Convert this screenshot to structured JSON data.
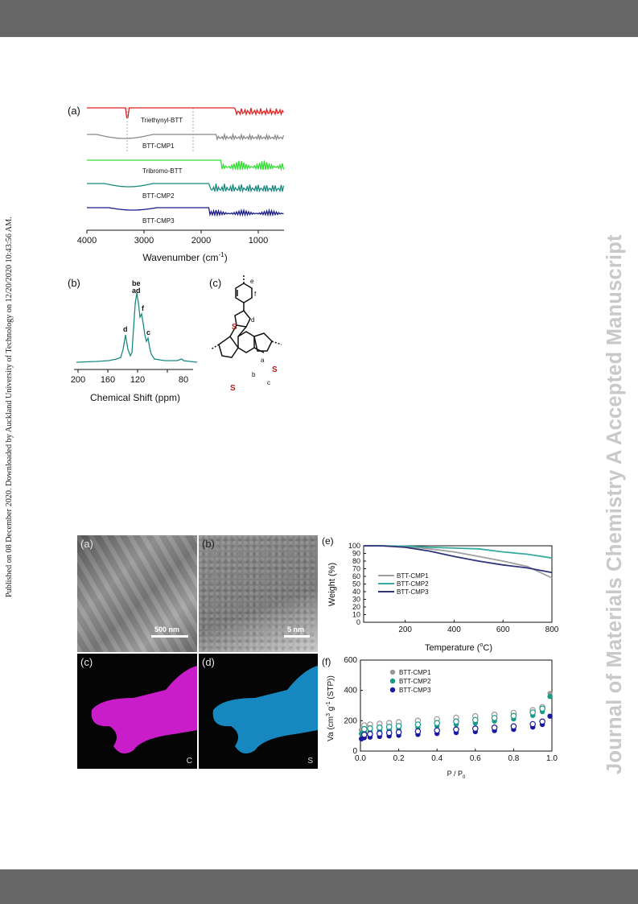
{
  "page": {
    "side_note": "Published on 08 December 2020. Downloaded by Auckland University of Technology on 12/20/2020 10:43:56 AM.",
    "watermark": "Journal of Materials Chemistry A Accepted Manuscript"
  },
  "figure1": {
    "ftir": {
      "label": "(a)",
      "xlabel": "Wavenumber (cm",
      "xlabel_sup": "-1",
      "xlabel_end": ")",
      "ticks": [
        "4000",
        "3000",
        "2000",
        "1000"
      ],
      "traces": [
        {
          "name": "Triethynyl-BTT",
          "color": "#e02020"
        },
        {
          "name": "BTT-CMP1",
          "color": "#8a8a8a"
        },
        {
          "name": "Tribromo-BTT",
          "color": "#33dd33"
        },
        {
          "name": "BTT-CMP2",
          "color": "#1a8a80"
        },
        {
          "name": "BTT-CMP3",
          "color": "#1a1a8a"
        }
      ]
    },
    "nmr": {
      "label": "(b)",
      "xlabel": "Chemical Shift (ppm)",
      "ticks": [
        "200",
        "160",
        "120",
        "80"
      ],
      "peak_labels": {
        "top1": "be",
        "top2": "ad",
        "f": "f",
        "d": "d",
        "c": "c"
      }
    },
    "structure": {
      "label": "(c)",
      "atom_S": "S",
      "letters": {
        "a": "a",
        "b": "b",
        "c": "c",
        "d": "d",
        "e": "e",
        "f": "f"
      }
    }
  },
  "figure2": {
    "sem": {
      "label": "(a)",
      "scale": "500 nm"
    },
    "tem": {
      "label": "(b)",
      "scale": "5 nm"
    },
    "map_c": {
      "label": "(c)",
      "element": "C",
      "color": "#ff22ff"
    },
    "map_s": {
      "label": "(d)",
      "element": "S",
      "color": "#22aaee"
    },
    "tga": {
      "label": "(e)",
      "xlabel": "Temperature (",
      "xlabel_unit": "C)",
      "xlabel_deg": "o",
      "ylabel": "Weight (%)",
      "xticks": [
        "200",
        "400",
        "600",
        "800"
      ],
      "yticks": [
        "0",
        "10",
        "20",
        "30",
        "40",
        "50",
        "60",
        "70",
        "80",
        "90",
        "100"
      ],
      "series": [
        {
          "name": "BTT-CMP1",
          "color": "#a0a0a0"
        },
        {
          "name": "BTT-CMP2",
          "color": "#3aaaa0"
        },
        {
          "name": "BTT-CMP3",
          "color": "#33337a"
        }
      ]
    },
    "iso": {
      "label": "(f)",
      "xlabel": "P / P",
      "xlabel_sub": "0",
      "ylabel": "Va (cm",
      "ylabel_sup1": "3",
      "ylabel_mid": " g",
      "ylabel_sup2": "-1",
      "ylabel_end": " (STP))",
      "xticks": [
        "0.0",
        "0.2",
        "0.4",
        "0.6",
        "0.8",
        "1.0"
      ],
      "yticks": [
        "0",
        "200",
        "400",
        "600"
      ],
      "series": [
        {
          "name": "BTT-CMP1",
          "color": "#999999"
        },
        {
          "name": "BTT-CMP2",
          "color": "#1a9a88"
        },
        {
          "name": "BTT-CMP3",
          "color": "#1a1aa0"
        }
      ]
    }
  },
  "chart_data": [
    {
      "type": "line",
      "xlabel": "Temperature (oC)",
      "ylabel": "Weight (%)",
      "xlim": [
        30,
        800
      ],
      "ylim": [
        0,
        100
      ],
      "series": [
        {
          "name": "BTT-CMP1",
          "x": [
            30,
            100,
            200,
            300,
            400,
            500,
            600,
            700,
            800
          ],
          "values": [
            100,
            100,
            99,
            96,
            92,
            86,
            80,
            73,
            58
          ]
        },
        {
          "name": "BTT-CMP2",
          "x": [
            30,
            100,
            200,
            300,
            400,
            500,
            600,
            700,
            800
          ],
          "values": [
            100,
            100,
            99.5,
            98,
            97,
            96,
            92,
            89,
            84
          ]
        },
        {
          "name": "BTT-CMP3",
          "x": [
            30,
            100,
            200,
            300,
            400,
            500,
            600,
            700,
            800
          ],
          "values": [
            100,
            100,
            98,
            93,
            86,
            80,
            75,
            71,
            65
          ]
        }
      ]
    },
    {
      "type": "scatter",
      "xlabel": "P / P0",
      "ylabel": "Va (cm3 g-1 (STP))",
      "xlim": [
        0,
        1
      ],
      "ylim": [
        0,
        600
      ],
      "series": [
        {
          "name": "BTT-CMP1",
          "x": [
            0.005,
            0.02,
            0.05,
            0.1,
            0.15,
            0.2,
            0.3,
            0.4,
            0.5,
            0.6,
            0.7,
            0.8,
            0.9,
            0.95,
            0.99
          ],
          "values": [
            140,
            150,
            155,
            160,
            165,
            170,
            180,
            190,
            200,
            210,
            220,
            232,
            250,
            270,
            380
          ]
        },
        {
          "name": "BTT-CMP2",
          "x": [
            0.005,
            0.02,
            0.05,
            0.1,
            0.15,
            0.2,
            0.3,
            0.4,
            0.5,
            0.6,
            0.7,
            0.8,
            0.9,
            0.95,
            0.99
          ],
          "values": [
            115,
            125,
            130,
            135,
            140,
            145,
            155,
            165,
            175,
            185,
            198,
            212,
            235,
            260,
            360
          ]
        },
        {
          "name": "BTT-CMP3",
          "x": [
            0.005,
            0.02,
            0.05,
            0.1,
            0.15,
            0.2,
            0.3,
            0.4,
            0.5,
            0.6,
            0.7,
            0.8,
            0.9,
            0.95,
            0.99
          ],
          "values": [
            80,
            88,
            92,
            96,
            100,
            104,
            110,
            116,
            122,
            128,
            135,
            143,
            158,
            175,
            230
          ]
        }
      ]
    }
  ]
}
